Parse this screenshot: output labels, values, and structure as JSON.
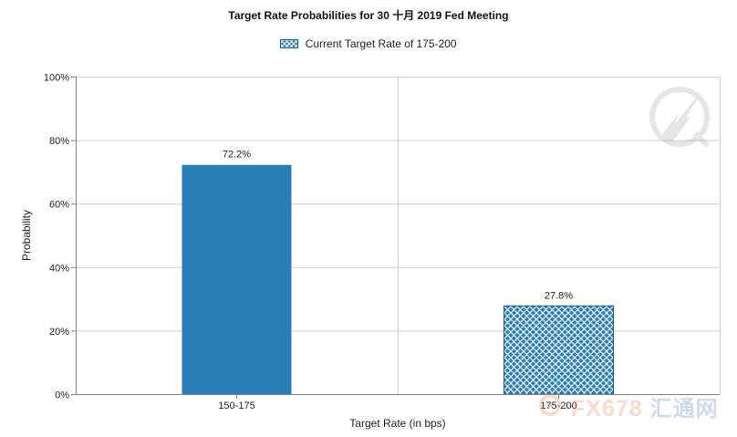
{
  "chart_data": {
    "type": "bar",
    "title": "Target Rate Probabilities for 30 十月 2019  Fed Meeting",
    "xlabel": "Target Rate (in bps)",
    "ylabel": "Probability",
    "ylim": [
      0,
      100
    ],
    "yticks": [
      "0%",
      "20%",
      "40%",
      "60%",
      "80%",
      "100%"
    ],
    "categories": [
      "150-175",
      "175-200"
    ],
    "values": [
      72.2,
      27.8
    ],
    "data_labels": [
      "72.2%",
      "27.8%"
    ],
    "current_index": 1,
    "legend": {
      "label": "Current Target Rate of 175-200",
      "position": "top-center"
    },
    "grid": true,
    "colors": {
      "bar": "#2a7fb8",
      "hatch": "#ffffff",
      "grid": "#d0d0d0",
      "axis": "#7f7f7f"
    }
  },
  "watermark": {
    "latin": "FX678",
    "cjk": "汇通网"
  }
}
